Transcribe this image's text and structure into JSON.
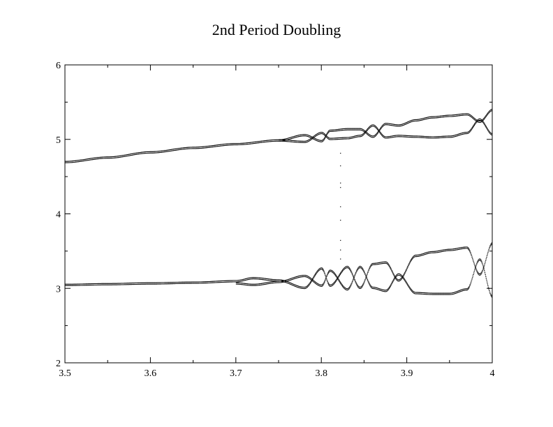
{
  "chart_data": {
    "type": "scatter",
    "title": "2nd Period Doubling",
    "xlabel": "",
    "ylabel": "",
    "xlim": [
      3.5,
      4.0
    ],
    "ylim": [
      2,
      6
    ],
    "x_ticks": [
      "3.5",
      "3.6",
      "3.7",
      "3.8",
      "3.9",
      "4"
    ],
    "y_ticks": [
      "2",
      "3",
      "4",
      "5",
      "6"
    ],
    "grid": false,
    "legend": "none",
    "marker_color": "#000000",
    "series": [
      {
        "band": "upper",
        "points": [
          [
            3.5,
            4.71
          ],
          [
            3.55,
            4.77
          ],
          [
            3.6,
            4.84
          ],
          [
            3.65,
            4.9
          ],
          [
            3.7,
            4.95
          ],
          [
            3.75,
            5.0
          ],
          [
            3.78,
            5.07
          ],
          [
            3.8,
            4.99
          ],
          [
            3.81,
            5.13
          ],
          [
            3.83,
            5.15
          ],
          [
            3.845,
            5.15
          ],
          [
            3.86,
            5.05
          ],
          [
            3.875,
            5.22
          ],
          [
            3.89,
            5.2
          ],
          [
            3.91,
            5.27
          ],
          [
            3.93,
            5.31
          ],
          [
            3.95,
            5.33
          ],
          [
            3.97,
            5.35
          ],
          [
            3.985,
            5.25
          ],
          [
            4.0,
            5.41
          ]
        ],
        "branch": [
          [
            3.75,
            5.0
          ],
          [
            3.78,
            4.98
          ],
          [
            3.8,
            5.1
          ],
          [
            3.81,
            5.02
          ],
          [
            3.83,
            5.03
          ],
          [
            3.845,
            5.06
          ],
          [
            3.86,
            5.2
          ],
          [
            3.875,
            5.04
          ],
          [
            3.89,
            5.06
          ],
          [
            3.91,
            5.05
          ],
          [
            3.93,
            5.04
          ],
          [
            3.95,
            5.05
          ],
          [
            3.97,
            5.1
          ],
          [
            3.985,
            5.28
          ],
          [
            4.0,
            5.08
          ]
        ]
      },
      {
        "band": "lower",
        "points": [
          [
            3.5,
            3.06
          ],
          [
            3.55,
            3.07
          ],
          [
            3.6,
            3.08
          ],
          [
            3.65,
            3.09
          ],
          [
            3.7,
            3.11
          ],
          [
            3.72,
            3.15
          ],
          [
            3.75,
            3.12
          ],
          [
            3.78,
            3.02
          ],
          [
            3.8,
            3.28
          ],
          [
            3.81,
            3.05
          ],
          [
            3.83,
            3.3
          ],
          [
            3.845,
            3.02
          ],
          [
            3.86,
            3.34
          ],
          [
            3.875,
            3.36
          ],
          [
            3.89,
            3.12
          ],
          [
            3.91,
            3.45
          ],
          [
            3.93,
            3.5
          ],
          [
            3.95,
            3.53
          ],
          [
            3.97,
            3.56
          ],
          [
            3.985,
            3.2
          ],
          [
            4.0,
            3.62
          ]
        ],
        "branch": [
          [
            3.7,
            3.08
          ],
          [
            3.72,
            3.06
          ],
          [
            3.75,
            3.1
          ],
          [
            3.78,
            3.18
          ],
          [
            3.8,
            3.05
          ],
          [
            3.81,
            3.25
          ],
          [
            3.83,
            3.0
          ],
          [
            3.845,
            3.3
          ],
          [
            3.86,
            3.02
          ],
          [
            3.875,
            2.98
          ],
          [
            3.89,
            3.2
          ],
          [
            3.91,
            2.95
          ],
          [
            3.93,
            2.94
          ],
          [
            3.95,
            2.94
          ],
          [
            3.97,
            3.0
          ],
          [
            3.985,
            3.4
          ],
          [
            4.0,
            2.9
          ]
        ]
      },
      {
        "band": "sparse-vertical",
        "points": [
          [
            3.822,
            4.82
          ],
          [
            3.822,
            4.65
          ],
          [
            3.822,
            4.42
          ],
          [
            3.822,
            4.36
          ],
          [
            3.822,
            4.1
          ],
          [
            3.822,
            3.92
          ],
          [
            3.822,
            3.65
          ],
          [
            3.822,
            3.52
          ],
          [
            3.822,
            3.4
          ]
        ]
      }
    ]
  }
}
